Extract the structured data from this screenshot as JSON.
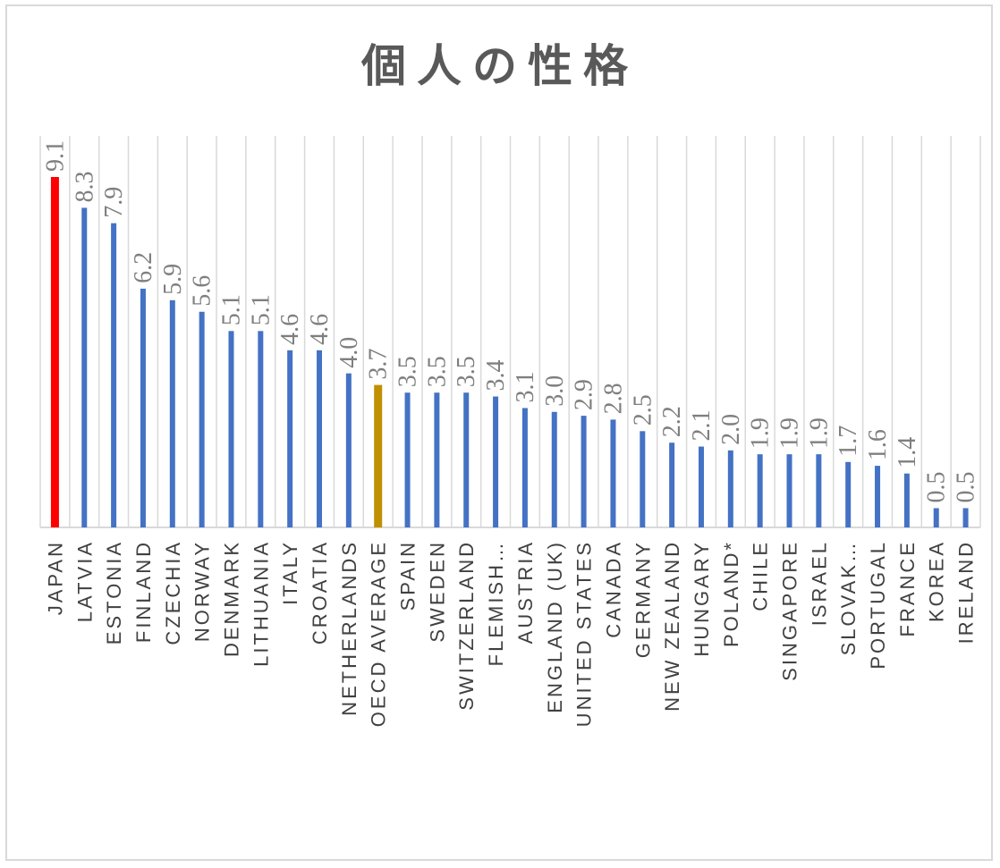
{
  "chart_data": {
    "type": "bar",
    "title": "個人の性格",
    "xlabel": "",
    "ylabel": "",
    "ylim": [
      0,
      10
    ],
    "grid": "vertical",
    "legend": "none",
    "categories": [
      "JAPAN",
      "LATVIA",
      "ESTONIA",
      "FINLAND",
      "CZECHIA",
      "NORWAY",
      "DENMARK",
      "LITHUANIA",
      "ITALY",
      "CROATIA",
      "NETHERLANDS",
      "OECD AVERAGE",
      "SPAIN",
      "SWEDEN",
      "SWITZERLAND",
      "FLEMISH…",
      "AUSTRIA",
      "ENGLAND (UK)",
      "UNITED STATES",
      "CANADA",
      "GERMANY",
      "NEW ZEALAND",
      "HUNGARY",
      "POLAND*",
      "CHILE",
      "SINGAPORE",
      "ISRAEL",
      "SLOVAK…",
      "PORTUGAL",
      "FRANCE",
      "KOREA",
      "IRELAND"
    ],
    "values": [
      9.1,
      8.3,
      7.9,
      6.2,
      5.9,
      5.6,
      5.1,
      5.1,
      4.6,
      4.6,
      4.0,
      3.7,
      3.5,
      3.5,
      3.5,
      3.4,
      3.1,
      3.0,
      2.9,
      2.8,
      2.5,
      2.2,
      2.1,
      2.0,
      1.9,
      1.9,
      1.9,
      1.7,
      1.6,
      1.4,
      0.5,
      0.5
    ],
    "labels": [
      "9.1",
      "8.3",
      "7.9",
      "6.2",
      "5.9",
      "5.6",
      "5.1",
      "5.1",
      "4.6",
      "4.6",
      "4.0",
      "3.7",
      "3.5",
      "3.5",
      "3.5",
      "3.4",
      "3.1",
      "3.0",
      "2.9",
      "2.8",
      "2.5",
      "2.2",
      "2.1",
      "2.0",
      "1.9",
      "1.9",
      "1.9",
      "1.7",
      "1.6",
      "1.4",
      "0.5",
      "0.5"
    ],
    "colors": {
      "default": "#4472c4",
      "highlight": "#ff0000",
      "average": "#bf9000",
      "grid": "#d9d9d9",
      "axis": "#d9d9d9"
    },
    "highlight_category": "JAPAN",
    "average_category": "OECD AVERAGE"
  }
}
